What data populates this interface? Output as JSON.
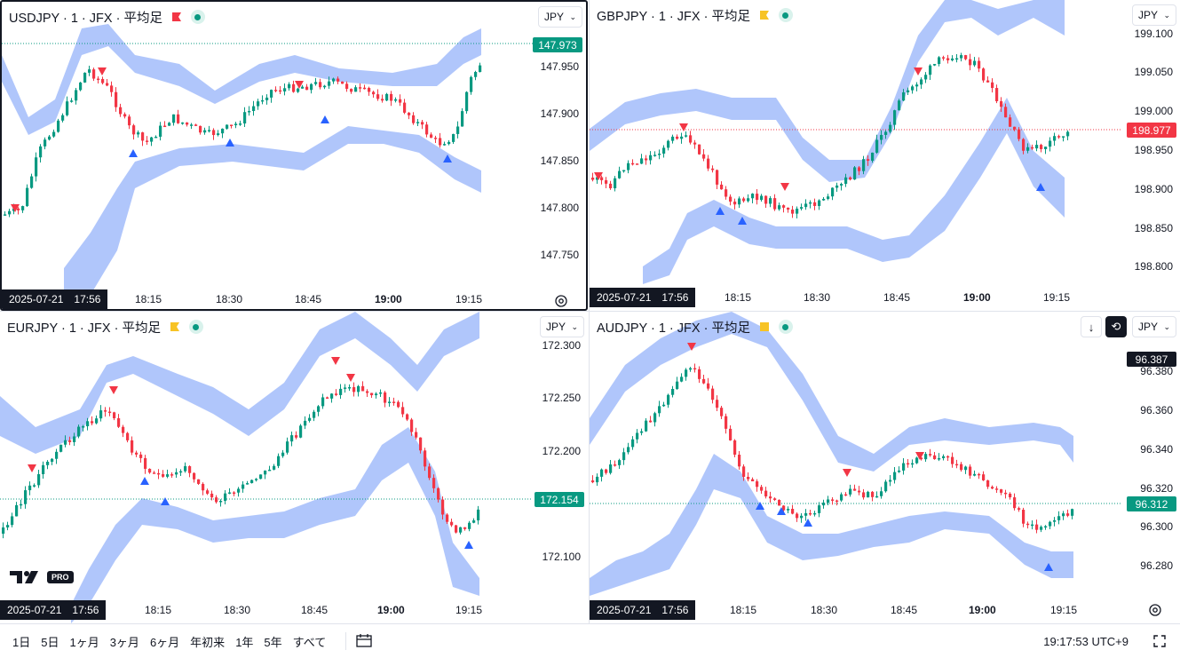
{
  "panes": [
    {
      "id": "usdjpy",
      "symbol": "USDJPY · 1 · JFX · 平均足",
      "flag_color": "#f23645",
      "flag_shape": "flag",
      "currency": "JPY",
      "price": "147.973",
      "price_color": "#089981",
      "y_ticks": [
        "147.950",
        "147.900",
        "147.850",
        "147.800",
        "147.750"
      ],
      "x_ticks": [
        "18:15",
        "18:30",
        "18:45",
        "19:00",
        "19:15"
      ],
      "date": "2025-07-21",
      "time": "17:56"
    },
    {
      "id": "gbpjpy",
      "symbol": "GBPJPY · 1 · JFX · 平均足",
      "flag_color": "#f7c325",
      "flag_shape": "flag",
      "currency": "JPY",
      "price": "198.977",
      "price_color": "#f23645",
      "y_ticks": [
        "199.100",
        "199.050",
        "199.000",
        "198.950",
        "198.900",
        "198.850",
        "198.800"
      ],
      "x_ticks": [
        "18:15",
        "18:30",
        "18:45",
        "19:00",
        "19:15"
      ],
      "date": "2025-07-21",
      "time": "17:56"
    },
    {
      "id": "eurjpy",
      "symbol": "EURJPY · 1 · JFX · 平均足",
      "flag_color": "#f7c325",
      "flag_shape": "flag",
      "currency": "JPY",
      "price": "172.154",
      "price_color": "#089981",
      "y_ticks": [
        "172.300",
        "172.250",
        "172.200",
        "172.150",
        "172.100"
      ],
      "x_ticks": [
        "18:15",
        "18:30",
        "18:45",
        "19:00",
        "19:15"
      ],
      "date": "2025-07-21",
      "time": "17:56",
      "logo_badge": "PRO"
    },
    {
      "id": "audjpy",
      "symbol": "AUDJPY · 1 · JFX · 平均足",
      "flag_color": "#f7c325",
      "flag_shape": "square",
      "currency": "JPY",
      "price": "96.312",
      "price_color": "#089981",
      "high_tag": "96.387",
      "y_ticks": [
        "96.380",
        "96.360",
        "96.340",
        "96.320",
        "96.300",
        "96.280"
      ],
      "x_ticks": [
        "18:15",
        "18:30",
        "18:45",
        "19:00",
        "19:15"
      ],
      "date": "2025-07-21",
      "time": "17:56"
    }
  ],
  "bottom_bar": {
    "ranges": [
      "1日",
      "5日",
      "1ヶ月",
      "3ヶ月",
      "6ヶ月",
      "年初来",
      "1年",
      "5年",
      "すべて"
    ],
    "clock": "19:17:53 UTC+9"
  },
  "icons": {
    "settings": "gear-icon",
    "compare": "date-range-icon",
    "fullscreen": "fullscreen-icon",
    "scroll_down": "arrow-down-icon",
    "sync": "sync-icon"
  },
  "colors": {
    "up": "#089981",
    "down": "#f23645",
    "band": "#a7c0fb",
    "signal_up": "#2962ff",
    "signal_down": "#f23645"
  }
}
